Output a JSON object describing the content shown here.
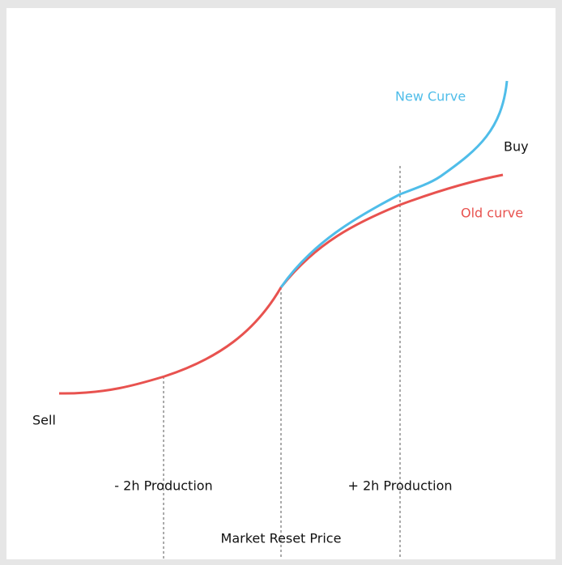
{
  "labels": {
    "new_curve": "New Curve",
    "buy": "Buy",
    "old_curve": "Old curve",
    "sell": "Sell",
    "minus_production": "- 2h Production",
    "plus_production": "+ 2h Production",
    "reset_price": "Market Reset Price"
  }
}
